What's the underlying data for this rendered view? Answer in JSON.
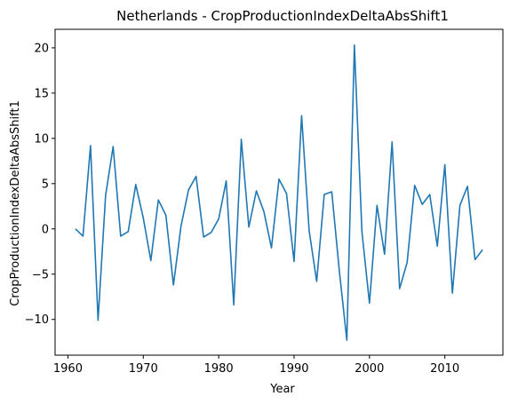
{
  "chart_data": {
    "type": "line",
    "title": "Netherlands - CropProductionIndexDeltaAbsShift1",
    "xlabel": "Year",
    "ylabel": "CropProductionIndexDeltaAbsShift1",
    "xlim": [
      1958.3,
      2017.7
    ],
    "ylim": [
      -13.95,
      22.05
    ],
    "xticks": [
      1960,
      1970,
      1980,
      1990,
      2000,
      2010
    ],
    "yticks": [
      -10,
      -5,
      0,
      5,
      10,
      15,
      20
    ],
    "grid": false,
    "line_color": "#1f77b4",
    "series": [
      {
        "x": [
          1961,
          1962,
          1963,
          1964,
          1965,
          1966,
          1967,
          1968,
          1969,
          1970,
          1971,
          1972,
          1973,
          1974,
          1975,
          1976,
          1977,
          1978,
          1979,
          1980,
          1981,
          1982,
          1983,
          1984,
          1985,
          1986,
          1987,
          1988,
          1989,
          1990,
          1991,
          1992,
          1993,
          1994,
          1995,
          1996,
          1997,
          1998,
          1999,
          2000,
          2001,
          2002,
          2003,
          2004,
          2005,
          2006,
          2007,
          2008,
          2009,
          2010,
          2011,
          2012,
          2013,
          2014,
          2015
        ],
        "values": [
          0.0,
          -0.8,
          9.2,
          -10.1,
          3.7,
          9.1,
          -0.8,
          -0.3,
          4.9,
          1.2,
          -3.5,
          3.2,
          1.5,
          -6.2,
          0.3,
          4.3,
          5.8,
          -0.9,
          -0.4,
          1.1,
          5.3,
          -8.4,
          9.9,
          0.2,
          4.2,
          1.9,
          -2.1,
          5.5,
          3.9,
          -3.6,
          12.5,
          -0.2,
          -5.8,
          3.8,
          4.1,
          -4.6,
          -12.3,
          20.3,
          -0.3,
          -8.2,
          2.6,
          -2.8,
          9.6,
          -6.6,
          -3.7,
          4.8,
          2.7,
          3.8,
          -1.9,
          7.1,
          -7.1,
          2.6,
          4.7,
          -3.4,
          -2.3
        ]
      }
    ]
  }
}
